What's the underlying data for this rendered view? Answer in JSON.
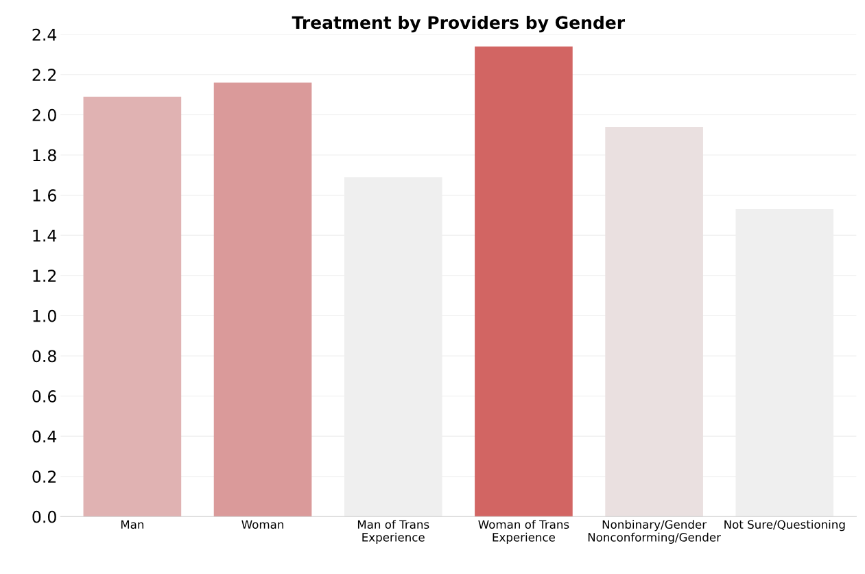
{
  "chart_data": {
    "type": "bar",
    "title": "Treatment by Providers by Gender",
    "categories": [
      "Man",
      "Woman",
      "Man of Trans\nExperience",
      "Woman of Trans\nExperience",
      "Nonbinary/Gender\nNonconforming/Gender",
      "Not Sure/Questioning"
    ],
    "values": [
      2.09,
      2.16,
      1.69,
      2.34,
      1.94,
      1.53
    ],
    "colors": [
      "#e0b2b2",
      "#da9a9a",
      "#efefef",
      "#d26563",
      "#eae0e0",
      "#efefef"
    ],
    "ylim": [
      0,
      2.4
    ],
    "yticks": [
      {
        "value": 0,
        "label": "0.0"
      },
      {
        "value": 0.2,
        "label": "0.2"
      },
      {
        "value": 0.4,
        "label": "0.4"
      },
      {
        "value": 0.6,
        "label": "0.6"
      },
      {
        "value": 0.8,
        "label": "0.8"
      },
      {
        "value": 1.0,
        "label": "1.0"
      },
      {
        "value": 1.2,
        "label": "1.2"
      },
      {
        "value": 1.4,
        "label": "1.4"
      },
      {
        "value": 1.6,
        "label": "1.6"
      },
      {
        "value": 1.8,
        "label": "1.8"
      },
      {
        "value": 2.0,
        "label": "2.0"
      },
      {
        "value": 2.2,
        "label": "2.2"
      },
      {
        "value": 2.4,
        "label": "2.4"
      }
    ],
    "grid": "y"
  }
}
